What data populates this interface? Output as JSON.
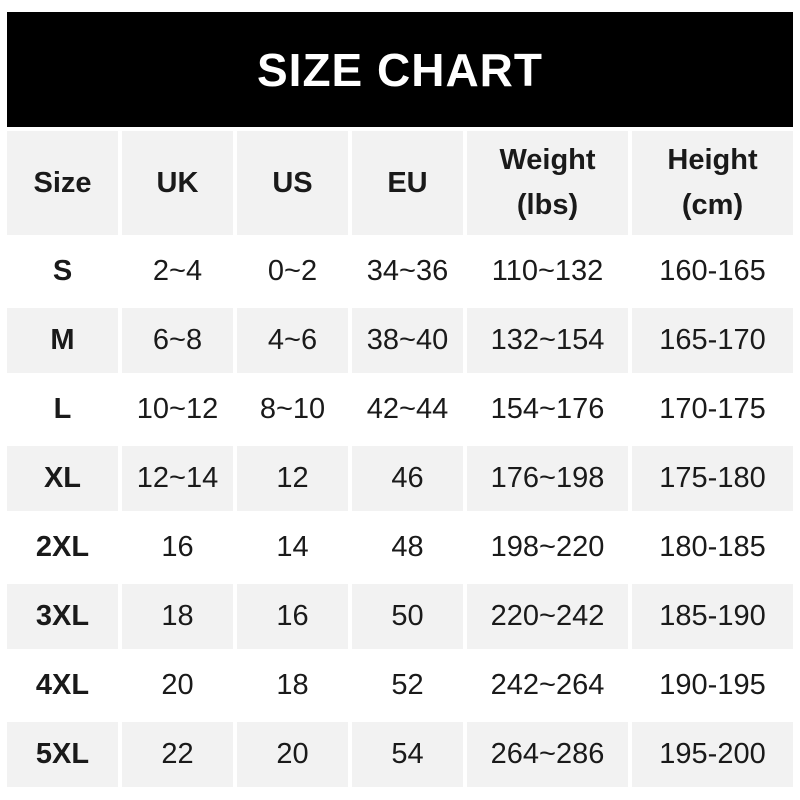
{
  "title_banner": {
    "title": "SIZE CHART",
    "bg_color": "#000000",
    "text_color": "#ffffff"
  },
  "colors": {
    "stripe_bg": "#f2f2f2",
    "row_bg": "#ffffff",
    "text": "#1a1a1a"
  },
  "chart_data": {
    "type": "table",
    "title": "SIZE CHART",
    "columns": [
      {
        "line1": "Size",
        "line2": ""
      },
      {
        "line1": "UK",
        "line2": ""
      },
      {
        "line1": "US",
        "line2": ""
      },
      {
        "line1": "EU",
        "line2": ""
      },
      {
        "line1": "Weight",
        "line2": "(lbs)"
      },
      {
        "line1": "Height",
        "line2": "(cm)"
      }
    ],
    "rows": [
      [
        "S",
        "2~4",
        "0~2",
        "34~36",
        "110~132",
        "160-165"
      ],
      [
        "M",
        "6~8",
        "4~6",
        "38~40",
        "132~154",
        "165-170"
      ],
      [
        "L",
        "10~12",
        "8~10",
        "42~44",
        "154~176",
        "170-175"
      ],
      [
        "XL",
        "12~14",
        "12",
        "46",
        "176~198",
        "175-180"
      ],
      [
        "2XL",
        "16",
        "14",
        "48",
        "198~220",
        "180-185"
      ],
      [
        "3XL",
        "18",
        "16",
        "50",
        "220~242",
        "185-190"
      ],
      [
        "4XL",
        "20",
        "18",
        "52",
        "242~264",
        "190-195"
      ],
      [
        "5XL",
        "22",
        "20",
        "54",
        "264~286",
        "195-200"
      ]
    ]
  }
}
